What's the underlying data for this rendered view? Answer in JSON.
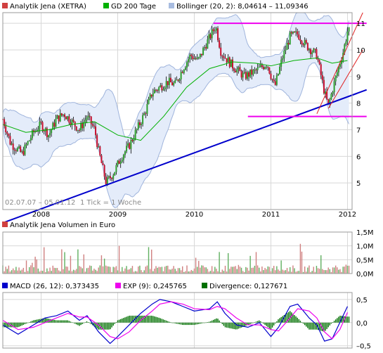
{
  "chart_data": [
    {
      "type": "candlestick",
      "legend": [
        {
          "name": "Analytik Jena (XETRA)",
          "color": "#d04040"
        },
        {
          "name": "GD 200 Tage",
          "color": "#00b000"
        },
        {
          "name": "Bollinger (20, 2): 8,04614 – 11,09346",
          "color": "#a8bce0"
        }
      ],
      "date_range": "02.07.07 – 05.01.12",
      "tick_note": "1 Tick = 1 Woche",
      "x_ticks": [
        "2008",
        "2009",
        "2010",
        "2011",
        "2012"
      ],
      "y_ticks": [
        "5",
        "6",
        "7",
        "8",
        "9",
        "10",
        "11"
      ],
      "ylim": [
        4,
        11.4
      ],
      "grid": true,
      "price_path": [
        [
          2007.5,
          7.4
        ],
        [
          2007.6,
          6.5
        ],
        [
          2007.75,
          6.1
        ],
        [
          2007.9,
          6.9
        ],
        [
          2008.0,
          7.2
        ],
        [
          2008.1,
          6.8
        ],
        [
          2008.2,
          7.4
        ],
        [
          2008.3,
          7.6
        ],
        [
          2008.4,
          7.3
        ],
        [
          2008.5,
          7.0
        ],
        [
          2008.6,
          7.5
        ],
        [
          2008.7,
          7.0
        ],
        [
          2008.75,
          6.2
        ],
        [
          2008.85,
          5.0
        ],
        [
          2008.95,
          5.4
        ],
        [
          2009.05,
          6.0
        ],
        [
          2009.15,
          6.4
        ],
        [
          2009.25,
          7.0
        ],
        [
          2009.35,
          7.6
        ],
        [
          2009.45,
          8.4
        ],
        [
          2009.55,
          8.6
        ],
        [
          2009.65,
          8.8
        ],
        [
          2009.75,
          8.7
        ],
        [
          2009.85,
          9.3
        ],
        [
          2009.95,
          9.8
        ],
        [
          2010.05,
          9.6
        ],
        [
          2010.15,
          10.2
        ],
        [
          2010.28,
          10.9
        ],
        [
          2010.35,
          9.9
        ],
        [
          2010.5,
          9.4
        ],
        [
          2010.65,
          9.0
        ],
        [
          2010.8,
          9.2
        ],
        [
          2010.95,
          9.5
        ],
        [
          2011.05,
          8.6
        ],
        [
          2011.15,
          9.7
        ],
        [
          2011.25,
          10.5
        ],
        [
          2011.35,
          10.6
        ],
        [
          2011.45,
          10.2
        ],
        [
          2011.6,
          9.8
        ],
        [
          2011.7,
          8.4
        ],
        [
          2011.75,
          7.9
        ],
        [
          2011.85,
          9.0
        ],
        [
          2011.95,
          10.0
        ],
        [
          2012.0,
          10.7
        ]
      ],
      "sma200": [
        [
          2007.5,
          7.2
        ],
        [
          2007.8,
          6.9
        ],
        [
          2008.1,
          7.0
        ],
        [
          2008.4,
          7.2
        ],
        [
          2008.7,
          7.3
        ],
        [
          2009.0,
          6.8
        ],
        [
          2009.3,
          6.6
        ],
        [
          2009.6,
          7.5
        ],
        [
          2009.9,
          8.6
        ],
        [
          2010.2,
          9.3
        ],
        [
          2010.5,
          9.55
        ],
        [
          2010.8,
          9.5
        ],
        [
          2011.0,
          9.4
        ],
        [
          2011.3,
          9.6
        ],
        [
          2011.6,
          9.7
        ],
        [
          2011.8,
          9.5
        ],
        [
          2012.0,
          9.6
        ]
      ],
      "trendlines": [
        {
          "color": "#0000cc",
          "from": [
            2007.5,
            3.5
          ],
          "to": [
            2012.25,
            8.5
          ]
        },
        {
          "color": "#ee00ee",
          "from": [
            2010.25,
            11.0
          ],
          "to": [
            2012.25,
            11.0
          ]
        },
        {
          "color": "#ee00ee",
          "from": [
            2010.7,
            7.5
          ],
          "to": [
            2012.25,
            7.5
          ]
        },
        {
          "color": "#e02020",
          "from": [
            2011.6,
            7.6
          ],
          "to": [
            2012.2,
            11.4
          ]
        },
        {
          "color": "#e02020",
          "from": [
            2011.75,
            7.8
          ],
          "to": [
            2012.2,
            10.0
          ]
        }
      ]
    },
    {
      "type": "bar",
      "legend": [
        {
          "name": "Analytik Jena Volumen in Euro",
          "color": "#d04040"
        }
      ],
      "y_ticks": [
        "0,0M",
        "0,5M",
        "1,0M",
        "1,5M"
      ],
      "ylim": [
        0,
        1.5
      ],
      "unit": "M"
    },
    {
      "type": "line",
      "legend": [
        {
          "name": "MACD (26, 12): 0,373435",
          "color": "#0000cc"
        },
        {
          "name": "EXP (9): 0,245765",
          "color": "#ee00ee"
        },
        {
          "name": "Divergence: 0,127671",
          "color": "#007000"
        }
      ],
      "y_ticks": [
        "–0,5",
        "0,0",
        "0,5"
      ],
      "ylim": [
        -0.55,
        0.65
      ],
      "macd": [
        [
          2007.5,
          -0.05
        ],
        [
          2007.7,
          -0.25
        ],
        [
          2007.9,
          -0.05
        ],
        [
          2008.05,
          0.1
        ],
        [
          2008.2,
          0.15
        ],
        [
          2008.35,
          0.25
        ],
        [
          2008.5,
          0.05
        ],
        [
          2008.6,
          0.15
        ],
        [
          2008.75,
          -0.2
        ],
        [
          2008.9,
          -0.45
        ],
        [
          2009.0,
          -0.3
        ],
        [
          2009.15,
          -0.05
        ],
        [
          2009.3,
          0.2
        ],
        [
          2009.45,
          0.4
        ],
        [
          2009.55,
          0.5
        ],
        [
          2009.7,
          0.45
        ],
        [
          2009.85,
          0.35
        ],
        [
          2010.0,
          0.25
        ],
        [
          2010.2,
          0.3
        ],
        [
          2010.3,
          0.45
        ],
        [
          2010.4,
          0.2
        ],
        [
          2010.55,
          -0.05
        ],
        [
          2010.7,
          -0.1
        ],
        [
          2010.85,
          0.0
        ],
        [
          2011.0,
          -0.3
        ],
        [
          2011.1,
          -0.1
        ],
        [
          2011.25,
          0.35
        ],
        [
          2011.35,
          0.4
        ],
        [
          2011.5,
          0.1
        ],
        [
          2011.6,
          -0.05
        ],
        [
          2011.7,
          -0.4
        ],
        [
          2011.8,
          -0.35
        ],
        [
          2011.9,
          0.0
        ],
        [
          2012.0,
          0.35
        ]
      ],
      "signal": [
        [
          2007.5,
          0.05
        ],
        [
          2007.7,
          -0.15
        ],
        [
          2007.9,
          -0.1
        ],
        [
          2008.05,
          0.0
        ],
        [
          2008.2,
          0.1
        ],
        [
          2008.35,
          0.2
        ],
        [
          2008.5,
          0.12
        ],
        [
          2008.6,
          0.12
        ],
        [
          2008.75,
          -0.05
        ],
        [
          2008.9,
          -0.3
        ],
        [
          2009.0,
          -0.35
        ],
        [
          2009.15,
          -0.2
        ],
        [
          2009.3,
          0.05
        ],
        [
          2009.45,
          0.25
        ],
        [
          2009.55,
          0.4
        ],
        [
          2009.7,
          0.45
        ],
        [
          2009.85,
          0.4
        ],
        [
          2010.0,
          0.3
        ],
        [
          2010.2,
          0.28
        ],
        [
          2010.3,
          0.35
        ],
        [
          2010.4,
          0.3
        ],
        [
          2010.55,
          0.1
        ],
        [
          2010.7,
          -0.05
        ],
        [
          2010.85,
          -0.05
        ],
        [
          2011.0,
          -0.15
        ],
        [
          2011.1,
          -0.18
        ],
        [
          2011.25,
          0.1
        ],
        [
          2011.35,
          0.3
        ],
        [
          2011.5,
          0.25
        ],
        [
          2011.6,
          0.1
        ],
        [
          2011.7,
          -0.2
        ],
        [
          2011.8,
          -0.35
        ],
        [
          2011.9,
          -0.15
        ],
        [
          2012.0,
          0.22
        ]
      ]
    }
  ]
}
